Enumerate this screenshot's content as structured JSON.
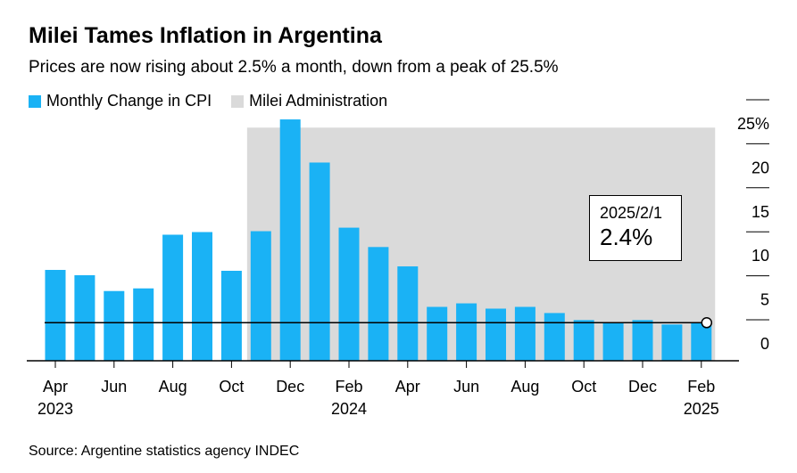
{
  "title": "Milei Tames Inflation in Argentina",
  "subtitle": "Prices are now rising about 2.5% a month, down from a peak of 25.5%",
  "legend": {
    "cpi_label": "Monthly Change in CPI",
    "admin_label": "Milei Administration"
  },
  "source": "Source: Argentine statistics agency INDEC",
  "callout": {
    "date": "2025/2/1",
    "value": "2.4%"
  },
  "colors": {
    "bar": "#1ab2f5",
    "shade": "#dadada",
    "axis": "#000000"
  },
  "chart_data": {
    "type": "bar",
    "categories": [
      "2023-04",
      "2023-05",
      "2023-06",
      "2023-07",
      "2023-08",
      "2023-09",
      "2023-10",
      "2023-11",
      "2023-12",
      "2024-01",
      "2024-02",
      "2024-03",
      "2024-04",
      "2024-05",
      "2024-06",
      "2024-07",
      "2024-08",
      "2024-09",
      "2024-10",
      "2024-11",
      "2024-12",
      "2025-01",
      "2025-02"
    ],
    "series": [
      {
        "name": "Monthly Change in CPI",
        "values": [
          8.4,
          7.8,
          6.0,
          6.3,
          12.4,
          12.7,
          8.3,
          12.8,
          25.5,
          20.6,
          13.2,
          11.0,
          8.8,
          4.2,
          4.6,
          4.0,
          4.2,
          3.5,
          2.7,
          2.4,
          2.7,
          2.2,
          2.4
        ]
      }
    ],
    "shaded_region": {
      "label": "Milei Administration",
      "start": "2023-11",
      "end": "2025-02"
    },
    "reference_line": {
      "value": 2.4
    },
    "highlight": {
      "category": "2025-02",
      "date": "2025/2/1",
      "value": 2.4
    },
    "x_ticks": [
      {
        "category": "2023-04",
        "label": "Apr",
        "year": "2023"
      },
      {
        "category": "2023-06",
        "label": "Jun",
        "year": ""
      },
      {
        "category": "2023-08",
        "label": "Aug",
        "year": ""
      },
      {
        "category": "2023-10",
        "label": "Oct",
        "year": ""
      },
      {
        "category": "2023-12",
        "label": "Dec",
        "year": ""
      },
      {
        "category": "2024-02",
        "label": "Feb",
        "year": "2024"
      },
      {
        "category": "2024-04",
        "label": "Apr",
        "year": ""
      },
      {
        "category": "2024-06",
        "label": "Jun",
        "year": ""
      },
      {
        "category": "2024-08",
        "label": "Aug",
        "year": ""
      },
      {
        "category": "2024-10",
        "label": "Oct",
        "year": ""
      },
      {
        "category": "2024-12",
        "label": "Dec",
        "year": ""
      },
      {
        "category": "2025-02",
        "label": "Feb",
        "year": "2025"
      }
    ],
    "y_ticks": [
      {
        "value": 0,
        "label": "0"
      },
      {
        "value": 5,
        "label": "5"
      },
      {
        "value": 10,
        "label": "10"
      },
      {
        "value": 15,
        "label": "15"
      },
      {
        "value": 20,
        "label": "20"
      },
      {
        "value": 25,
        "label": "25%"
      }
    ],
    "ylim": [
      -2,
      27
    ],
    "y_axis_position": "right",
    "grid": false
  }
}
